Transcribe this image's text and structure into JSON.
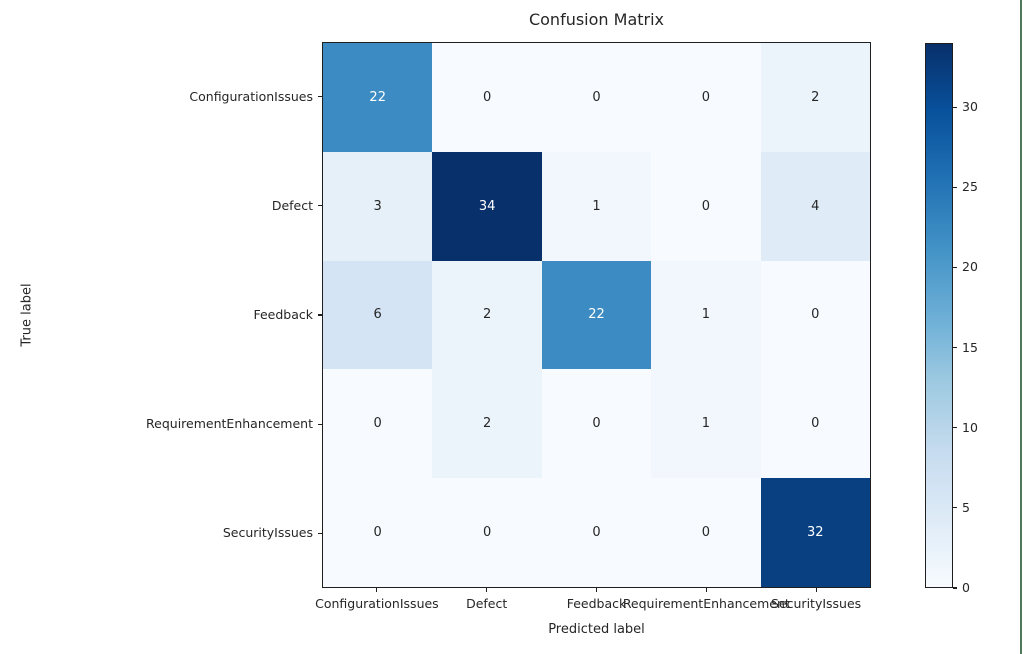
{
  "figure": {
    "frame_border_color": "#50795a",
    "spine_color": "#1f1f1f",
    "background_color": "#ffffff"
  },
  "chart_data": {
    "type": "heatmap",
    "title": "Confusion Matrix",
    "xlabel": "Predicted label",
    "ylabel": "True label",
    "x_categories": [
      "ConfigurationIssues",
      "Defect",
      "Feedback",
      "RequirementEnhancement",
      "SecurityIssues"
    ],
    "y_categories": [
      "ConfigurationIssues",
      "Defect",
      "Feedback",
      "RequirementEnhancement",
      "SecurityIssues"
    ],
    "matrix": [
      [
        22,
        0,
        0,
        0,
        2
      ],
      [
        3,
        34,
        1,
        0,
        4
      ],
      [
        6,
        2,
        22,
        1,
        0
      ],
      [
        0,
        2,
        0,
        1,
        0
      ],
      [
        0,
        0,
        0,
        0,
        32
      ]
    ],
    "vmin": 0,
    "vmax": 34,
    "colormap": "Blues",
    "colormap_stops": [
      "#f7fbff",
      "#deebf7",
      "#c6dbef",
      "#9ecae1",
      "#6baed6",
      "#4292c6",
      "#2171b5",
      "#08519c",
      "#08306b"
    ],
    "colorbar_ticks": [
      0,
      5,
      10,
      15,
      20,
      25,
      30
    ],
    "cell_text_color_light": "#ffffff",
    "cell_text_color_dark": "#262626",
    "grid": false,
    "legend_position": "right-colorbar"
  }
}
